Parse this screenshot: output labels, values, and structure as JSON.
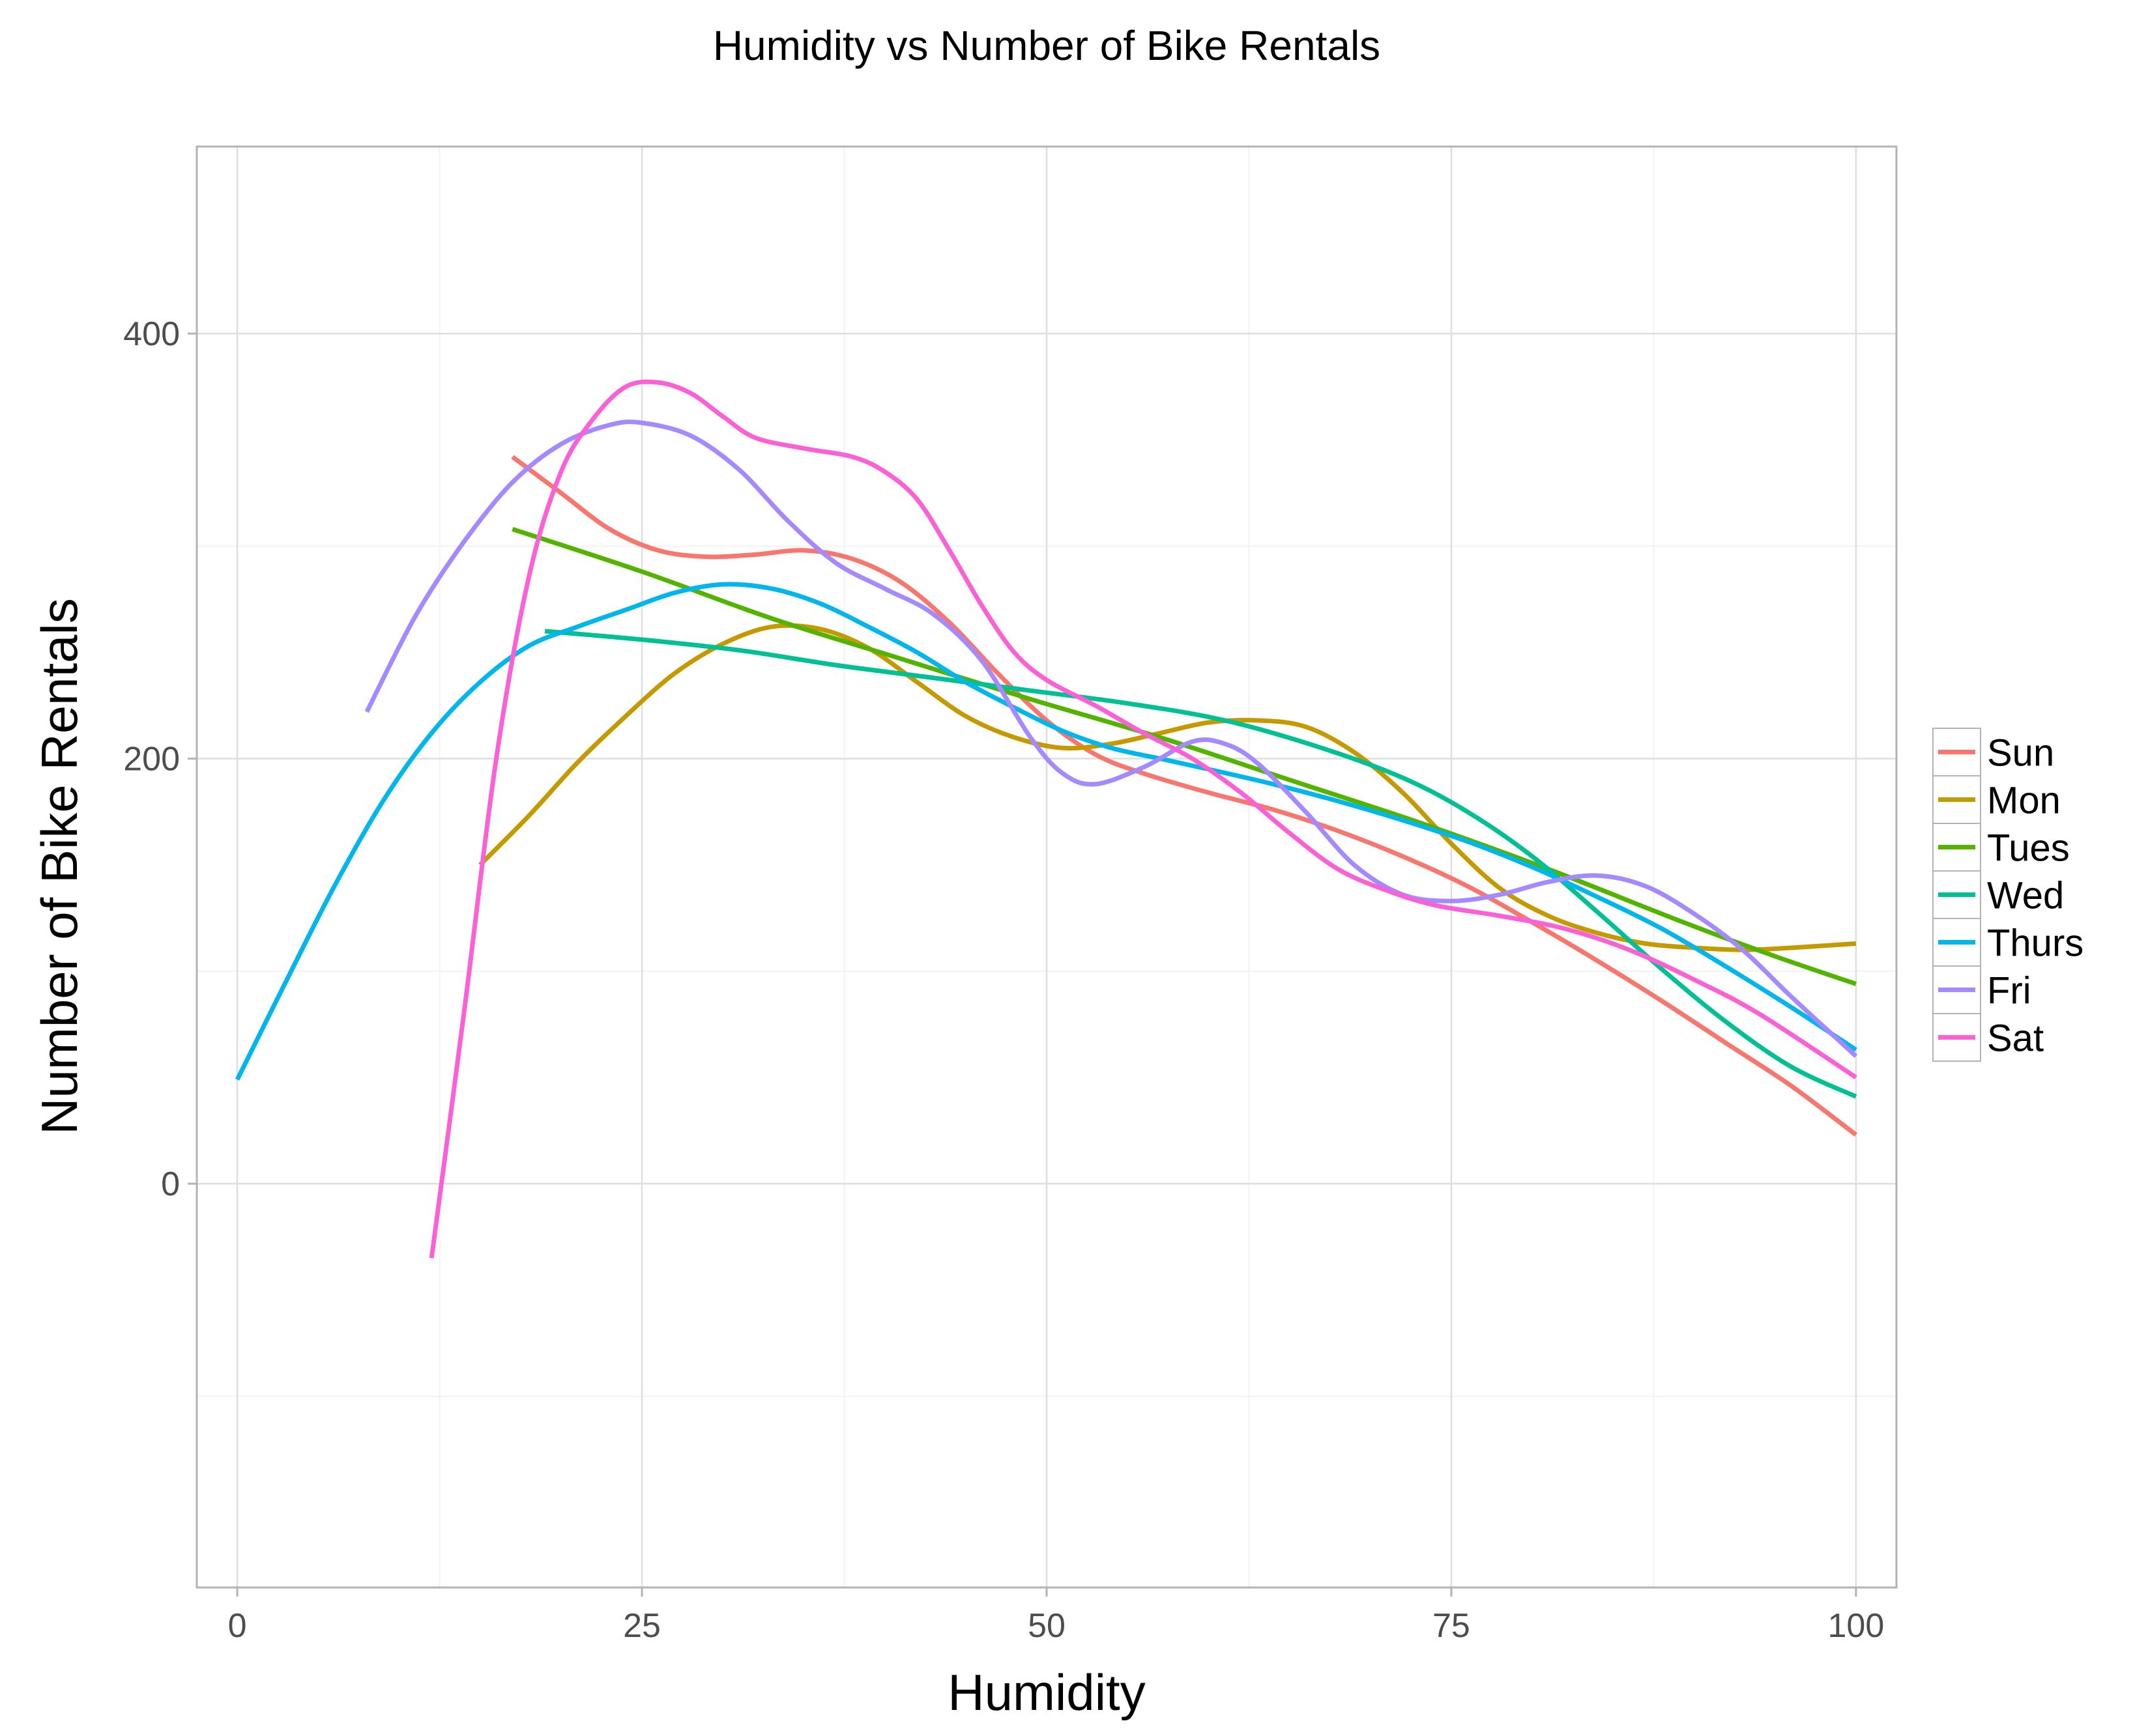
{
  "chart_data": {
    "type": "line",
    "title": "Humidity vs Number of Bike Rentals",
    "xlabel": "Humidity",
    "ylabel": "Number of Bike Rentals",
    "xlim": [
      -2.5,
      102.5
    ],
    "ylim": [
      -190,
      488
    ],
    "x_ticks": [
      0,
      25,
      50,
      75,
      100
    ],
    "x_tick_labels": [
      "0",
      "25",
      "50",
      "75",
      "100"
    ],
    "y_ticks": [
      0,
      200,
      400
    ],
    "y_tick_labels": [
      "0",
      "200",
      "400"
    ],
    "grid": true,
    "legend_position": "right",
    "series": [
      {
        "name": "Sun",
        "color": "#F8766D",
        "points": [
          [
            17,
            342
          ],
          [
            20,
            325
          ],
          [
            23,
            308
          ],
          [
            26,
            298
          ],
          [
            29,
            295
          ],
          [
            32,
            296
          ],
          [
            35,
            298
          ],
          [
            38,
            294
          ],
          [
            41,
            283
          ],
          [
            44,
            264
          ],
          [
            47,
            240
          ],
          [
            50,
            218
          ],
          [
            53,
            202
          ],
          [
            56,
            193
          ],
          [
            60,
            184
          ],
          [
            64,
            176
          ],
          [
            68,
            166
          ],
          [
            72,
            154
          ],
          [
            76,
            140
          ],
          [
            80,
            123
          ],
          [
            84,
            105
          ],
          [
            88,
            86
          ],
          [
            92,
            66
          ],
          [
            96,
            46
          ],
          [
            100,
            23
          ]
        ]
      },
      {
        "name": "Mon",
        "color": "#C49A00",
        "points": [
          [
            15,
            150
          ],
          [
            18,
            173
          ],
          [
            21,
            198
          ],
          [
            24,
            220
          ],
          [
            27,
            240
          ],
          [
            30,
            254
          ],
          [
            33,
            262
          ],
          [
            36,
            261
          ],
          [
            39,
            252
          ],
          [
            42,
            236
          ],
          [
            45,
            220
          ],
          [
            48,
            210
          ],
          [
            51,
            205
          ],
          [
            54,
            207
          ],
          [
            57,
            212
          ],
          [
            60,
            217
          ],
          [
            63,
            218
          ],
          [
            66,
            215
          ],
          [
            69,
            203
          ],
          [
            72,
            184
          ],
          [
            75,
            160
          ],
          [
            78,
            139
          ],
          [
            81,
            126
          ],
          [
            84,
            118
          ],
          [
            87,
            113
          ],
          [
            90,
            111
          ],
          [
            93,
            110
          ],
          [
            96,
            111
          ],
          [
            100,
            113
          ]
        ]
      },
      {
        "name": "Tues",
        "color": "#53B400",
        "points": [
          [
            17,
            308
          ],
          [
            25,
            288
          ],
          [
            33,
            266
          ],
          [
            41,
            247
          ],
          [
            49,
            228
          ],
          [
            57,
            210
          ],
          [
            65,
            190
          ],
          [
            73,
            170
          ],
          [
            81,
            148
          ],
          [
            89,
            124
          ],
          [
            95,
            107
          ],
          [
            100,
            94
          ]
        ]
      },
      {
        "name": "Wed",
        "color": "#00C094",
        "points": [
          [
            19,
            260
          ],
          [
            25,
            256
          ],
          [
            31,
            251
          ],
          [
            37,
            244
          ],
          [
            43,
            238
          ],
          [
            49,
            232
          ],
          [
            55,
            226
          ],
          [
            61,
            218
          ],
          [
            67,
            205
          ],
          [
            72,
            191
          ],
          [
            76,
            175
          ],
          [
            80,
            154
          ],
          [
            84,
            128
          ],
          [
            88,
            101
          ],
          [
            92,
            76
          ],
          [
            96,
            55
          ],
          [
            100,
            41
          ]
        ]
      },
      {
        "name": "Thurs",
        "color": "#00B6EB",
        "points": [
          [
            0,
            49
          ],
          [
            3,
            95
          ],
          [
            6,
            140
          ],
          [
            9,
            180
          ],
          [
            12,
            212
          ],
          [
            15,
            236
          ],
          [
            18,
            253
          ],
          [
            21,
            262
          ],
          [
            24,
            270
          ],
          [
            27,
            278
          ],
          [
            30,
            282
          ],
          [
            33,
            280
          ],
          [
            36,
            273
          ],
          [
            39,
            262
          ],
          [
            42,
            250
          ],
          [
            45,
            236
          ],
          [
            48,
            224
          ],
          [
            51,
            213
          ],
          [
            54,
            205
          ],
          [
            57,
            200
          ],
          [
            60,
            195
          ],
          [
            64,
            188
          ],
          [
            68,
            180
          ],
          [
            72,
            171
          ],
          [
            76,
            161
          ],
          [
            80,
            149
          ],
          [
            84,
            135
          ],
          [
            88,
            120
          ],
          [
            92,
            102
          ],
          [
            96,
            83
          ],
          [
            100,
            63
          ]
        ]
      },
      {
        "name": "Fri",
        "color": "#A58AFF",
        "points": [
          [
            8,
            222
          ],
          [
            11,
            267
          ],
          [
            14,
            302
          ],
          [
            17,
            330
          ],
          [
            20,
            348
          ],
          [
            23,
            357
          ],
          [
            25,
            358
          ],
          [
            28,
            352
          ],
          [
            31,
            336
          ],
          [
            34,
            312
          ],
          [
            37,
            292
          ],
          [
            40,
            280
          ],
          [
            43,
            268
          ],
          [
            46,
            246
          ],
          [
            49,
            210
          ],
          [
            51,
            193
          ],
          [
            53,
            188
          ],
          [
            56,
            196
          ],
          [
            59,
            208
          ],
          [
            61,
            207
          ],
          [
            63,
            198
          ],
          [
            66,
            175
          ],
          [
            69,
            150
          ],
          [
            72,
            136
          ],
          [
            75,
            133
          ],
          [
            78,
            136
          ],
          [
            81,
            142
          ],
          [
            84,
            145
          ],
          [
            87,
            140
          ],
          [
            90,
            127
          ],
          [
            93,
            110
          ],
          [
            96,
            88
          ],
          [
            100,
            60
          ]
        ]
      },
      {
        "name": "Sat",
        "color": "#FB61D7",
        "points": [
          [
            12,
            -35
          ],
          [
            14,
            80
          ],
          [
            16,
            200
          ],
          [
            18,
            285
          ],
          [
            20,
            335
          ],
          [
            22,
            360
          ],
          [
            24,
            375
          ],
          [
            26,
            377
          ],
          [
            28,
            372
          ],
          [
            30,
            361
          ],
          [
            32,
            351
          ],
          [
            35,
            346
          ],
          [
            38,
            342
          ],
          [
            40,
            335
          ],
          [
            42,
            322
          ],
          [
            44,
            298
          ],
          [
            46,
            272
          ],
          [
            48,
            250
          ],
          [
            50,
            237
          ],
          [
            53,
            225
          ],
          [
            56,
            212
          ],
          [
            59,
            200
          ],
          [
            62,
            184
          ],
          [
            65,
            165
          ],
          [
            68,
            148
          ],
          [
            71,
            138
          ],
          [
            74,
            131
          ],
          [
            78,
            126
          ],
          [
            82,
            120
          ],
          [
            86,
            110
          ],
          [
            90,
            96
          ],
          [
            94,
            80
          ],
          [
            100,
            50
          ]
        ]
      }
    ]
  }
}
